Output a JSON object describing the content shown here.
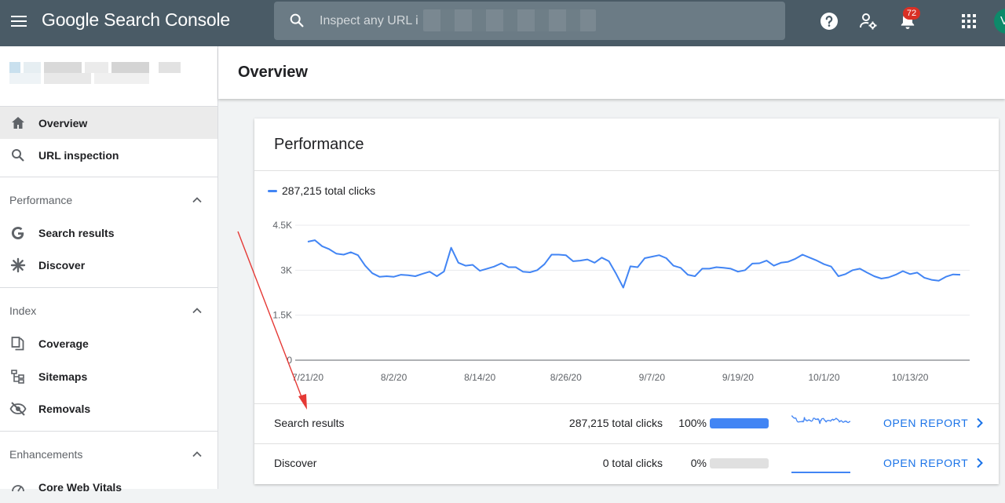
{
  "app": {
    "title": "Google Search Console"
  },
  "search": {
    "placeholder": "Inspect any URL i"
  },
  "notifications": {
    "count": "72"
  },
  "avatar": {
    "initial": "V"
  },
  "page": {
    "title": "Overview"
  },
  "sidebar": {
    "items": [
      {
        "label": "Overview",
        "icon": "home-icon",
        "active": true
      },
      {
        "label": "URL inspection",
        "icon": "search-icon"
      },
      {
        "label": "Search results",
        "icon": "google-g-icon"
      },
      {
        "label": "Discover",
        "icon": "asterisk-icon"
      },
      {
        "label": "Coverage",
        "icon": "copy-pages-icon"
      },
      {
        "label": "Sitemaps",
        "icon": "sitemap-icon"
      },
      {
        "label": "Removals",
        "icon": "eye-off-icon"
      },
      {
        "label": "Core Web Vitals",
        "icon": "speed-gauge-icon"
      }
    ],
    "sections": [
      {
        "label": "Performance"
      },
      {
        "label": "Index"
      },
      {
        "label": "Enhancements"
      }
    ]
  },
  "performance": {
    "title": "Performance",
    "legend": "287,215 total clicks",
    "rows": [
      {
        "name": "Search results",
        "clicks": "287,215 total clicks",
        "pct": "100%",
        "fraction": 1.0,
        "action": "OPEN REPORT"
      },
      {
        "name": "Discover",
        "clicks": "0 total clicks",
        "pct": "0%",
        "fraction": 0.0,
        "action": "OPEN REPORT"
      }
    ]
  },
  "colors": {
    "accent": "#4285f4",
    "topbar": "#4a5b66",
    "link": "#1a73e8",
    "arrow": "#e53935"
  },
  "chart_data": {
    "type": "line",
    "title": "",
    "xlabel": "",
    "ylabel": "",
    "ylim": [
      0,
      4500
    ],
    "y_ticks": [
      "0",
      "1.5K",
      "3K",
      "4.5K"
    ],
    "y_tick_values": [
      0,
      1500,
      3000,
      4500
    ],
    "x_tick_labels": [
      "7/21/20",
      "8/2/20",
      "8/14/20",
      "8/26/20",
      "9/7/20",
      "9/19/20",
      "10/1/20",
      "10/13/20"
    ],
    "x_tick_positions": [
      0,
      12,
      24,
      36,
      48,
      60,
      72,
      84
    ],
    "grid": true,
    "series": [
      {
        "name": "287,215 total clicks",
        "values": [
          3950,
          4000,
          3800,
          3700,
          3550,
          3520,
          3600,
          3500,
          3150,
          2900,
          2780,
          2800,
          2780,
          2850,
          2830,
          2800,
          2880,
          2950,
          2800,
          2960,
          3750,
          3250,
          3150,
          3180,
          2980,
          3050,
          3120,
          3230,
          3100,
          3100,
          2950,
          2930,
          3000,
          3200,
          3520,
          3520,
          3500,
          3300,
          3320,
          3360,
          3250,
          3420,
          3300,
          2880,
          2420,
          3130,
          3100,
          3400,
          3450,
          3500,
          3400,
          3150,
          3080,
          2850,
          2800,
          3050,
          3050,
          3100,
          3080,
          3050,
          2950,
          3000,
          3220,
          3230,
          3320,
          3150,
          3250,
          3280,
          3380,
          3520,
          3420,
          3320,
          3200,
          3120,
          2800,
          2870,
          3000,
          3050,
          2920,
          2800,
          2720,
          2760,
          2850,
          2970,
          2870,
          2920,
          2750,
          2680,
          2650,
          2780,
          2860,
          2850
        ]
      }
    ]
  },
  "discover_spark": {
    "values": [
      0,
      0,
      0,
      0,
      0,
      0,
      0,
      0,
      0,
      0
    ]
  }
}
